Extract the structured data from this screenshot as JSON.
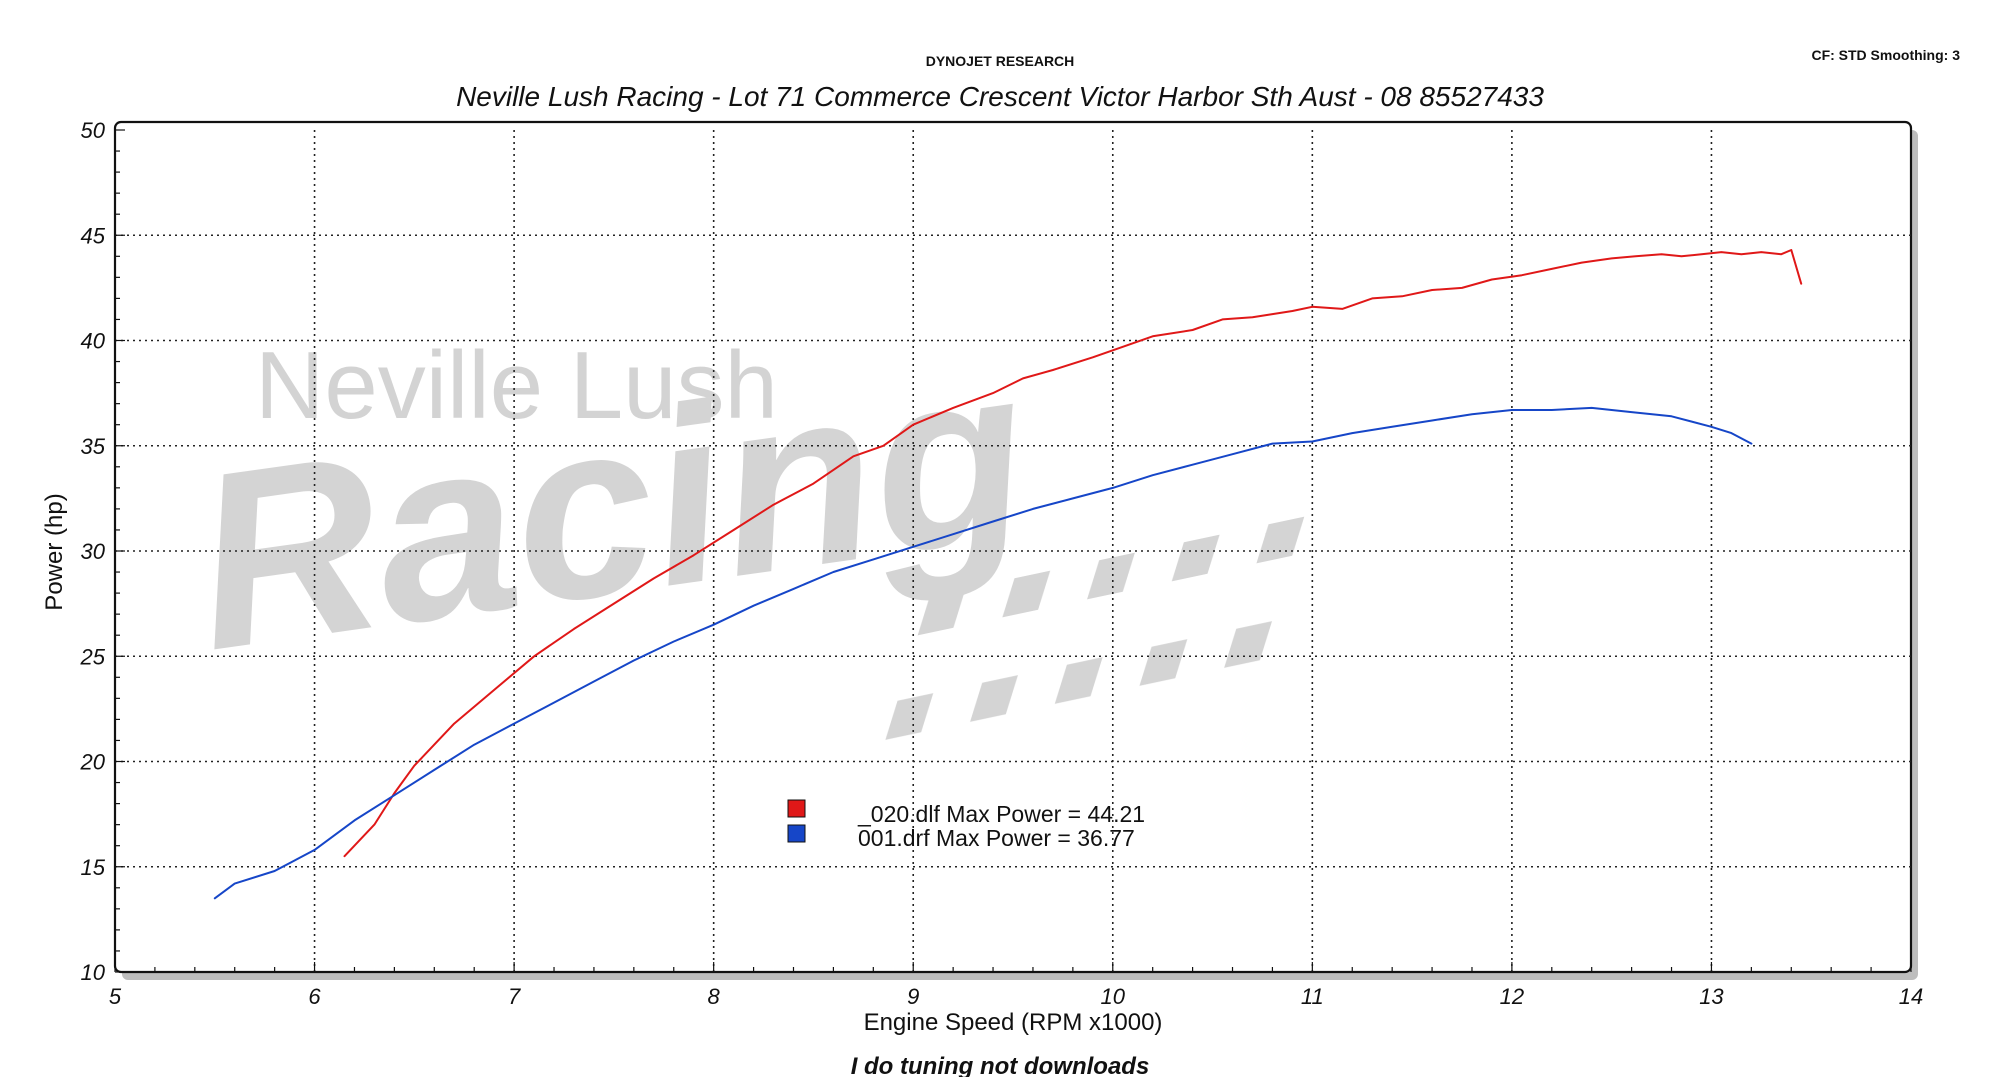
{
  "header": {
    "brand": "DYNOJET RESEARCH",
    "settings": "CF: STD  Smoothing: 3",
    "subtitle": "Neville Lush Racing  - Lot 71 Commerce Crescent  Victor Harbor Sth Aust  - 08 85527433"
  },
  "watermark": {
    "line1": "Neville Lush",
    "line2": "Racing",
    "line3": ":::::"
  },
  "footer": "I do tuning not downloads",
  "colors": {
    "red_series": "#e01818",
    "blue_series": "#1646c8",
    "grid": "#222222",
    "watermark": "#d0d0d0"
  },
  "chart_data": {
    "type": "line",
    "title": "",
    "xlabel": "Engine Speed (RPM x1000)",
    "ylabel": "Power (hp)",
    "xlim": [
      5,
      14
    ],
    "ylim": [
      10,
      50
    ],
    "xticks": [
      "5",
      "6",
      "7",
      "8",
      "9",
      "10",
      "11",
      "12",
      "13",
      "14"
    ],
    "yticks": [
      "10",
      "15",
      "20",
      "25",
      "30",
      "35",
      "40",
      "45",
      "50"
    ],
    "grid": true,
    "legend_placement": "center",
    "legend": [
      {
        "label": "_020.dlf Max Power = 44.21",
        "color": "#e01818"
      },
      {
        "label": "001.drf Max Power = 36.77",
        "color": "#1646c8"
      }
    ],
    "series": [
      {
        "color": "#e01818",
        "x": [
          6.15,
          6.3,
          6.4,
          6.5,
          6.7,
          6.9,
          7.1,
          7.3,
          7.5,
          7.7,
          7.9,
          8.1,
          8.3,
          8.5,
          8.7,
          8.85,
          9.0,
          9.2,
          9.4,
          9.55,
          9.7,
          9.9,
          10.05,
          10.2,
          10.4,
          10.55,
          10.7,
          10.9,
          11.0,
          11.15,
          11.3,
          11.45,
          11.6,
          11.75,
          11.9,
          12.05,
          12.2,
          12.35,
          12.5,
          12.62,
          12.75,
          12.85,
          12.95,
          13.05,
          13.15,
          13.25,
          13.35,
          13.4,
          13.45
        ],
        "y": [
          15.5,
          17.0,
          18.5,
          19.8,
          21.8,
          23.4,
          25.0,
          26.3,
          27.5,
          28.7,
          29.8,
          31.0,
          32.2,
          33.2,
          34.5,
          35.0,
          36.0,
          36.8,
          37.5,
          38.2,
          38.6,
          39.2,
          39.7,
          40.2,
          40.5,
          41.0,
          41.1,
          41.4,
          41.6,
          41.5,
          42.0,
          42.1,
          42.4,
          42.5,
          42.9,
          43.1,
          43.4,
          43.7,
          43.9,
          44.0,
          44.1,
          44.0,
          44.1,
          44.2,
          44.1,
          44.2,
          44.1,
          44.3,
          42.7
        ]
      },
      {
        "color": "#1646c8",
        "x": [
          5.5,
          5.6,
          5.8,
          6.0,
          6.2,
          6.4,
          6.6,
          6.8,
          7.0,
          7.2,
          7.4,
          7.6,
          7.8,
          8.0,
          8.2,
          8.4,
          8.6,
          8.8,
          9.0,
          9.2,
          9.4,
          9.6,
          9.8,
          10.0,
          10.2,
          10.4,
          10.6,
          10.8,
          11.0,
          11.2,
          11.4,
          11.6,
          11.8,
          12.0,
          12.2,
          12.4,
          12.6,
          12.8,
          13.0,
          13.1,
          13.2
        ],
        "y": [
          13.5,
          14.2,
          14.8,
          15.8,
          17.2,
          18.4,
          19.6,
          20.8,
          21.8,
          22.8,
          23.8,
          24.8,
          25.7,
          26.5,
          27.4,
          28.2,
          29.0,
          29.6,
          30.2,
          30.8,
          31.4,
          32.0,
          32.5,
          33.0,
          33.6,
          34.1,
          34.6,
          35.1,
          35.2,
          35.6,
          35.9,
          36.2,
          36.5,
          36.7,
          36.7,
          36.8,
          36.6,
          36.4,
          35.9,
          35.6,
          35.1
        ]
      }
    ]
  }
}
